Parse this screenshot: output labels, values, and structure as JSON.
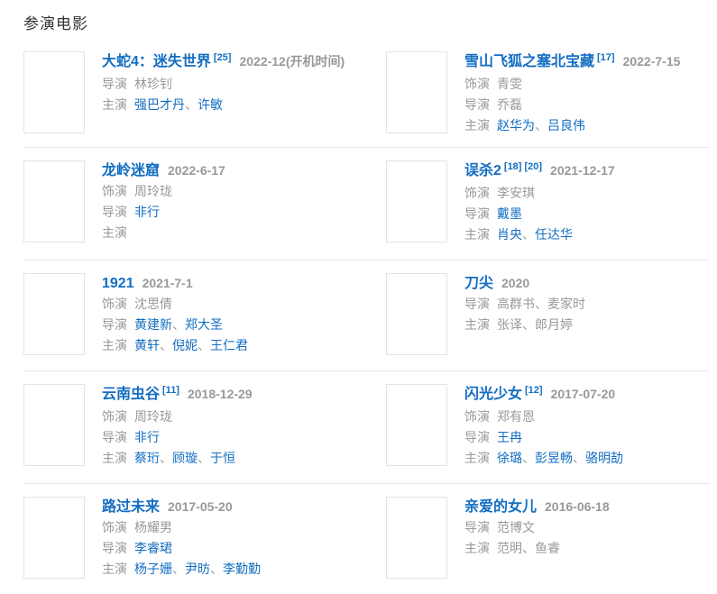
{
  "header": {
    "title": "参演电影"
  },
  "ui": {
    "name_separator": "、"
  },
  "colors": {
    "link_blue": "#136ec2",
    "muted_gray": "#999999",
    "heading": "#333333",
    "divider": "#e7e7e7"
  },
  "movies": [
    {
      "title": "大蛇4：迷失世界",
      "refs": [
        "[25]"
      ],
      "date": "2022-12(开机时间)",
      "poster_bg": "background:linear-gradient(180deg,#7e9c85 0%,#3c5a48 40%,#c75f1f 68%,#6e2f12 84%,#1d1a16 100%)",
      "credits": [
        {
          "label": "导演",
          "names": [
            {
              "text": "林珍钊",
              "link": false
            }
          ]
        },
        {
          "label": "主演",
          "names": [
            {
              "text": "强巴才丹",
              "link": true
            },
            {
              "text": "许敏",
              "link": true
            }
          ]
        }
      ]
    },
    {
      "title": "雪山飞狐之塞北宝藏",
      "refs": [
        "[17]"
      ],
      "date": "2022-7-15",
      "poster_bg": "background:linear-gradient(180deg,#f4f2ec 0%,#ddd8cb 35%,#8b857a 62%,#3c3a36 85%,#27262          4 100%)",
      "credits": [
        {
          "label": "饰演",
          "names": [
            {
              "text": "青雯",
              "link": false
            }
          ]
        },
        {
          "label": "导演",
          "names": [
            {
              "text": "乔磊",
              "link": false
            }
          ]
        },
        {
          "label": "主演",
          "names": [
            {
              "text": "赵华为",
              "link": true
            },
            {
              "text": "吕良伟",
              "link": true
            }
          ]
        }
      ]
    },
    {
      "title": "龙岭迷窟",
      "refs": [],
      "date": "2022-6-17",
      "poster_bg": "background:linear-gradient(180deg,#191309 0%,#3a2b15 38%,#c59b4d 52%,#5a3f1c 70%,#120d07 100%)",
      "credits": [
        {
          "label": "饰演",
          "names": [
            {
              "text": "周玲珑",
              "link": false
            }
          ]
        },
        {
          "label": "导演",
          "names": [
            {
              "text": "非行",
              "link": true
            }
          ]
        },
        {
          "label": "主演",
          "names": []
        }
      ]
    },
    {
      "title": "误杀2",
      "refs": [
        "[18]",
        "[20]"
      ],
      "date": "2021-12-17",
      "poster_bg": "background:linear-gradient(180deg,#d9c6ab 0%,#c8ab8a 45%,#9a males7450 70%,#5e462f 100%)",
      "credits": [
        {
          "label": "饰演",
          "names": [
            {
              "text": "李安琪",
              "link": false
            }
          ]
        },
        {
          "label": "导演",
          "names": [
            {
              "text": "戴墨",
              "link": true
            }
          ]
        },
        {
          "label": "主演",
          "names": [
            {
              "text": "肖央",
              "link": true
            },
            {
              "text": "任达华",
              "link": true
            }
          ]
        }
      ]
    },
    {
      "title": "1921",
      "refs": [],
      "date": "2021-7-1",
      "poster_bg": "background:linear-gradient(180deg,#94928b 0%,#b3a99b 30%,#d4642f 52%,#9b7a5e 72%,#6e625 8 100%)",
      "credits": [
        {
          "label": "饰演",
          "names": [
            {
              "text": "沈思倩",
              "link": false
            }
          ]
        },
        {
          "label": "导演",
          "names": [
            {
              "text": "黄建新",
              "link": true
            },
            {
              "text": "郑大圣",
              "link": true
            }
          ]
        },
        {
          "label": "主演",
          "names": [
            {
              "text": "黄轩",
              "link": true
            },
            {
              "text": "倪妮",
              "link": true
            },
            {
              "text": "王仁君",
              "link": true
            }
          ]
        }
      ]
    },
    {
      "title": "刀尖",
      "refs": [],
      "date": "2020",
      "poster_bg": "background:linear-gradient(180deg,#3c0d0d 0%,#61120f 45%,#3a0a09 75%,#240606 100%)",
      "credits": [
        {
          "label": "导演",
          "names": [
            {
              "text": "高群书",
              "link": false
            },
            {
              "text": "麦家时",
              "link": false
            }
          ]
        },
        {
          "label": "主演",
          "names": [
            {
              "text": "张译",
              "link": false
            },
            {
              "text": "郎月婷",
              "link": false
            }
          ]
        }
      ]
    },
    {
      "title": "云南虫谷",
      "refs": [
        "[11]"
      ],
      "date": "2018-12-29",
      "poster_bg": "background:linear-gradient(180deg,#0d181a 0%,#2a4f4a 38%,#bcd9c9 50%,#1a3630 68%,#08110f 100%)",
      "credits": [
        {
          "label": "饰演",
          "names": [
            {
              "text": "周玲珑",
              "link": false
            }
          ]
        },
        {
          "label": "导演",
          "names": [
            {
              "text": "非行",
              "link": true
            }
          ]
        },
        {
          "label": "主演",
          "names": [
            {
              "text": "蔡珩",
              "link": true
            },
            {
              "text": "顾璇",
              "link": true
            },
            {
              "text": "于恒",
              "link": true
            }
          ]
        }
      ]
    },
    {
      "title": "闪光少女",
      "refs": [
        "[12]"
      ],
      "date": "2017-07-20",
      "poster_bg": "background:linear-gradient(180deg,#0e2239 0%,#143click350 42%,#2d5b63 68%,#3a523b 85%,#2c3f2e 100%)",
      "credits": [
        {
          "label": "饰演",
          "names": [
            {
              "text": "郑有恩",
              "link": false
            }
          ]
        },
        {
          "label": "导演",
          "names": [
            {
              "text": "王冉",
              "link": true
            }
          ]
        },
        {
          "label": "主演",
          "names": [
            {
              "text": "徐璐",
              "link": true
            },
            {
              "text": "彭昱畅",
              "link": true
            },
            {
              "text": "骆明劼",
              "link": true
            }
          ]
        }
      ]
    },
    {
      "title": "路过未来",
      "refs": [],
      "date": "2017-05-20",
      "poster_bg": "background:linear-gradient(90deg,#9c4a1e 0%,#d8a63c 20%,#23272e 44%,#23272e 58%,#d8a63c 82%,#7a4a14 100%)",
      "credits": [
        {
          "label": "饰演",
          "names": [
            {
              "text": "杨耀男",
              "link": false
            }
          ]
        },
        {
          "label": "导演",
          "names": [
            {
              "text": "李睿珺",
              "link": true
            }
          ]
        },
        {
          "label": "主演",
          "names": [
            {
              "text": "杨子姗",
              "link": true
            },
            {
              "text": "尹昉",
              "link": true
            },
            {
              "text": "李勤勤",
              "link": true
            }
          ]
        }
      ]
    },
    {
      "title": "亲爱的女儿",
      "refs": [],
      "date": "2016-06-18",
      "poster_bg": "background:linear-gradient(180deg,#cdc6ba 0%,#b5ae9f 48%,#6e685c 62%,#efe8da 80%,#d9cdb9 100%)",
      "credits": [
        {
          "label": "导演",
          "names": [
            {
              "text": "范博文",
              "link": false
            }
          ]
        },
        {
          "label": "主演",
          "names": [
            {
              "text": "范明",
              "link": false
            },
            {
              "text": "鱼睿",
              "link": false
            }
          ]
        }
      ]
    }
  ]
}
